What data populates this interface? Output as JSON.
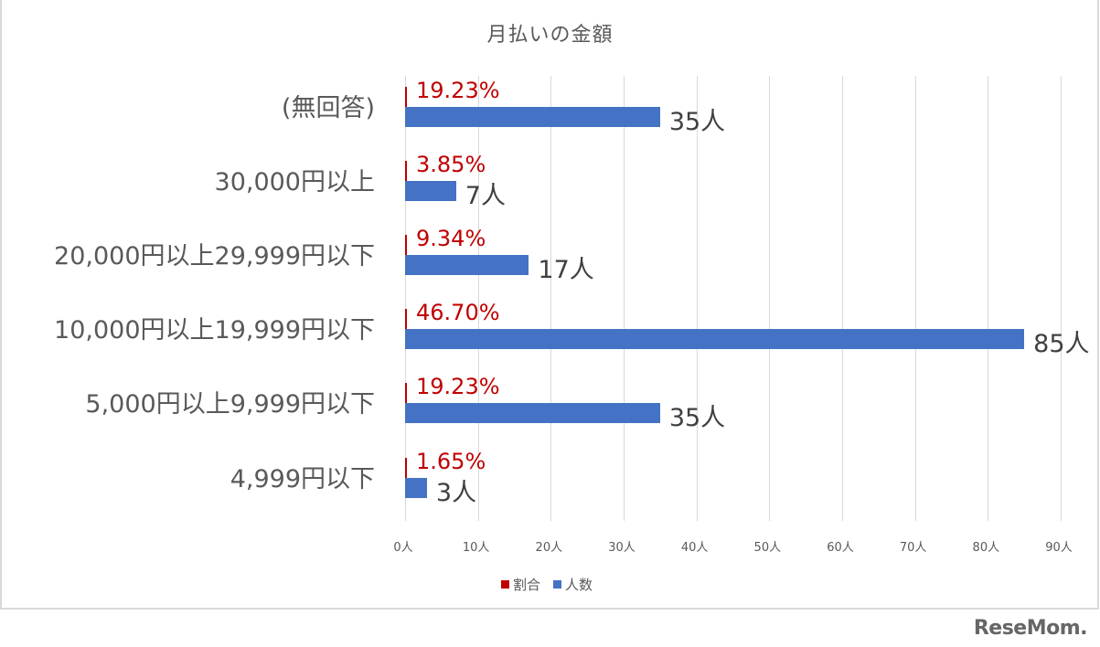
{
  "chart_data": {
    "type": "bar",
    "orientation": "horizontal",
    "title": "月払いの金額",
    "xlabel": "",
    "ylabel": "",
    "xlim": [
      0,
      90
    ],
    "grid": true,
    "legend_position": "bottom",
    "categories": [
      "(無回答)",
      "30,000円以上",
      "20,000円以上29,999円以下",
      "10,000円以上19,999円以下",
      "5,000円以上9,999円以下",
      "4,999円以下"
    ],
    "series": [
      {
        "name": "割合",
        "color": "#c00000",
        "values": [
          19.23,
          3.85,
          9.34,
          46.7,
          19.23,
          1.65
        ],
        "labels": [
          "19.23%",
          "3.85%",
          "9.34%",
          "46.70%",
          "19.23%",
          "1.65%"
        ]
      },
      {
        "name": "人数",
        "color": "#4472c4",
        "values": [
          35,
          7,
          17,
          85,
          35,
          3
        ],
        "labels": [
          "35人",
          "7人",
          "17人",
          "85人",
          "35人",
          "3人"
        ]
      }
    ],
    "x_ticks": [
      "0人",
      "10人",
      "20人",
      "30人",
      "40人",
      "50人",
      "60人",
      "70人",
      "80人",
      "90人"
    ]
  },
  "legend": [
    {
      "label": "割合",
      "color": "#c00000"
    },
    {
      "label": "人数",
      "color": "#4472c4"
    }
  ],
  "watermark": "ReseMom."
}
